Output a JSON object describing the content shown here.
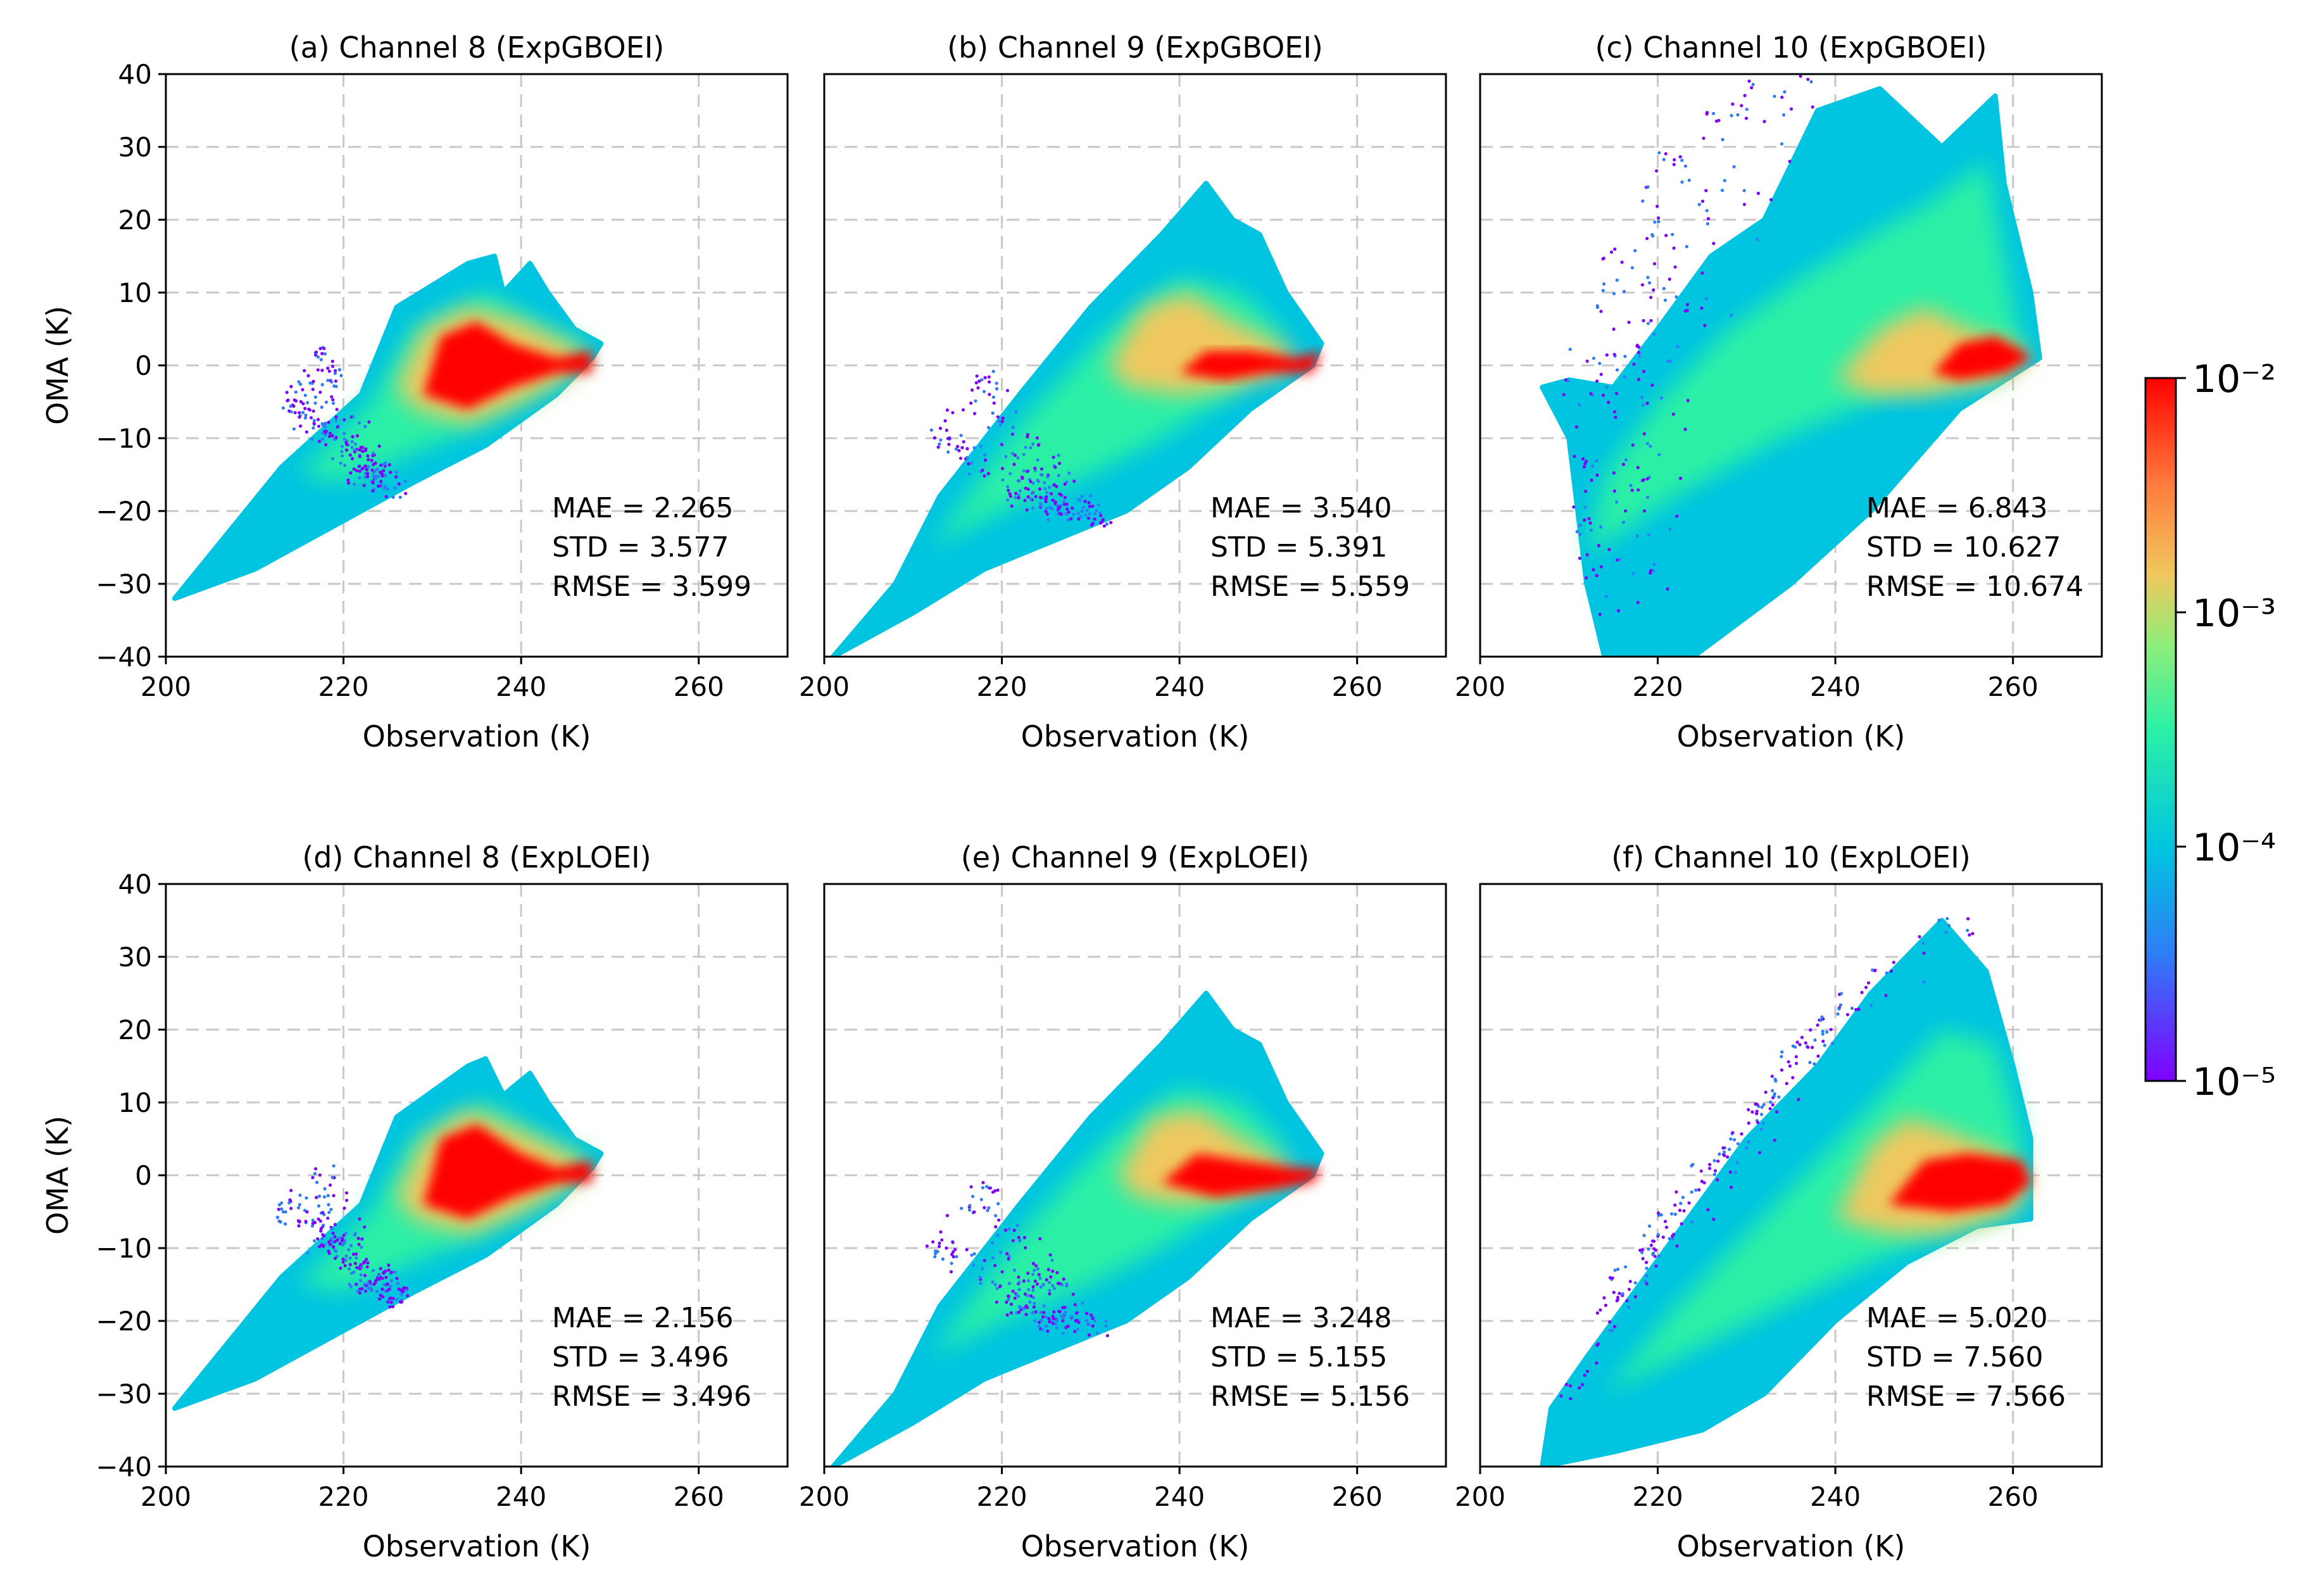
{
  "chart_data": [
    {
      "type": "scatter",
      "title": "(a) Channel 8 (ExpGBOEI)",
      "xlabel": "Observation (K)",
      "ylabel": "OMA (K)",
      "xlim": [
        200,
        270
      ],
      "ylim": [
        -40,
        40
      ],
      "xticks": [
        "200",
        "220",
        "240",
        "260"
      ],
      "yticks": [
        "40",
        "30",
        "20",
        "10",
        "0",
        "−10",
        "−20",
        "−30",
        "−40"
      ],
      "grid": true,
      "stats": [
        "MAE = 2.265",
        "STD = 3.577",
        "RMSE = 3.599"
      ],
      "density_cloud": {
        "x_range": [
          201,
          249
        ],
        "y_range": [
          -32,
          16
        ],
        "peak": [
          236,
          0
        ]
      }
    },
    {
      "type": "scatter",
      "title": "(b) Channel 9 (ExpGBOEI)",
      "xlabel": "Observation (K)",
      "ylabel": "",
      "xlim": [
        200,
        270
      ],
      "ylim": [
        -40,
        40
      ],
      "xticks": [
        "200",
        "220",
        "240",
        "260"
      ],
      "yticks": [],
      "grid": true,
      "stats": [
        "MAE = 3.540",
        "STD = 5.391",
        "RMSE = 5.559"
      ],
      "density_cloud": {
        "x_range": [
          201,
          256
        ],
        "y_range": [
          -40,
          25
        ],
        "peak": [
          246,
          0
        ]
      }
    },
    {
      "type": "scatter",
      "title": "(c) Channel 10 (ExpGBOEI)",
      "xlabel": "Observation (K)",
      "ylabel": "",
      "xlim": [
        200,
        270
      ],
      "ylim": [
        -40,
        40
      ],
      "xticks": [
        "200",
        "220",
        "240",
        "260"
      ],
      "yticks": [],
      "grid": true,
      "stats": [
        "MAE = 6.843",
        "STD = 10.627",
        "RMSE = 10.674"
      ],
      "density_cloud": {
        "x_range": [
          207,
          263
        ],
        "y_range": [
          -40,
          40
        ],
        "peak": [
          258,
          0
        ]
      }
    },
    {
      "type": "scatter",
      "title": "(d) Channel 8 (ExpLOEI)",
      "xlabel": "Observation (K)",
      "ylabel": "OMA (K)",
      "xlim": [
        200,
        270
      ],
      "ylim": [
        -40,
        40
      ],
      "xticks": [
        "200",
        "220",
        "240",
        "260"
      ],
      "yticks": [
        "40",
        "30",
        "20",
        "10",
        "0",
        "−10",
        "−20",
        "−30",
        "−40"
      ],
      "grid": true,
      "stats": [
        "MAE = 2.156",
        "STD = 3.496",
        "RMSE = 3.496"
      ],
      "density_cloud": {
        "x_range": [
          201,
          249
        ],
        "y_range": [
          -32,
          16
        ],
        "peak": [
          236,
          0
        ]
      }
    },
    {
      "type": "scatter",
      "title": "(e) Channel 9 (ExpLOEI)",
      "xlabel": "Observation (K)",
      "ylabel": "",
      "xlim": [
        200,
        270
      ],
      "ylim": [
        -40,
        40
      ],
      "xticks": [
        "200",
        "220",
        "240",
        "260"
      ],
      "yticks": [],
      "grid": true,
      "stats": [
        "MAE = 3.248",
        "STD = 5.155",
        "RMSE = 5.156"
      ],
      "density_cloud": {
        "x_range": [
          201,
          256
        ],
        "y_range": [
          -40,
          25
        ],
        "peak": [
          245,
          0
        ]
      }
    },
    {
      "type": "scatter",
      "title": "(f) Channel 10 (ExpLOEI)",
      "xlabel": "Observation (K)",
      "ylabel": "",
      "xlim": [
        200,
        270
      ],
      "ylim": [
        -40,
        40
      ],
      "xticks": [
        "200",
        "220",
        "240",
        "260"
      ],
      "yticks": [],
      "grid": true,
      "stats": [
        "MAE = 5.020",
        "STD = 7.560",
        "RMSE = 7.566"
      ],
      "density_cloud": {
        "x_range": [
          207,
          262
        ],
        "y_range": [
          -40,
          35
        ],
        "peak": [
          257,
          -1
        ]
      }
    }
  ],
  "colorbar": {
    "scale": "log",
    "range": [
      1e-05,
      0.01
    ],
    "tick_labels": [
      "10⁻²",
      "10⁻³",
      "10⁻⁴",
      "10⁻⁵"
    ],
    "colormap": "rainbow",
    "colors": [
      "#8000ff",
      "#2f7df6",
      "#00c4e0",
      "#2af0a6",
      "#8fee7a",
      "#f0c85e",
      "#ff7a3c",
      "#ff0000"
    ]
  }
}
